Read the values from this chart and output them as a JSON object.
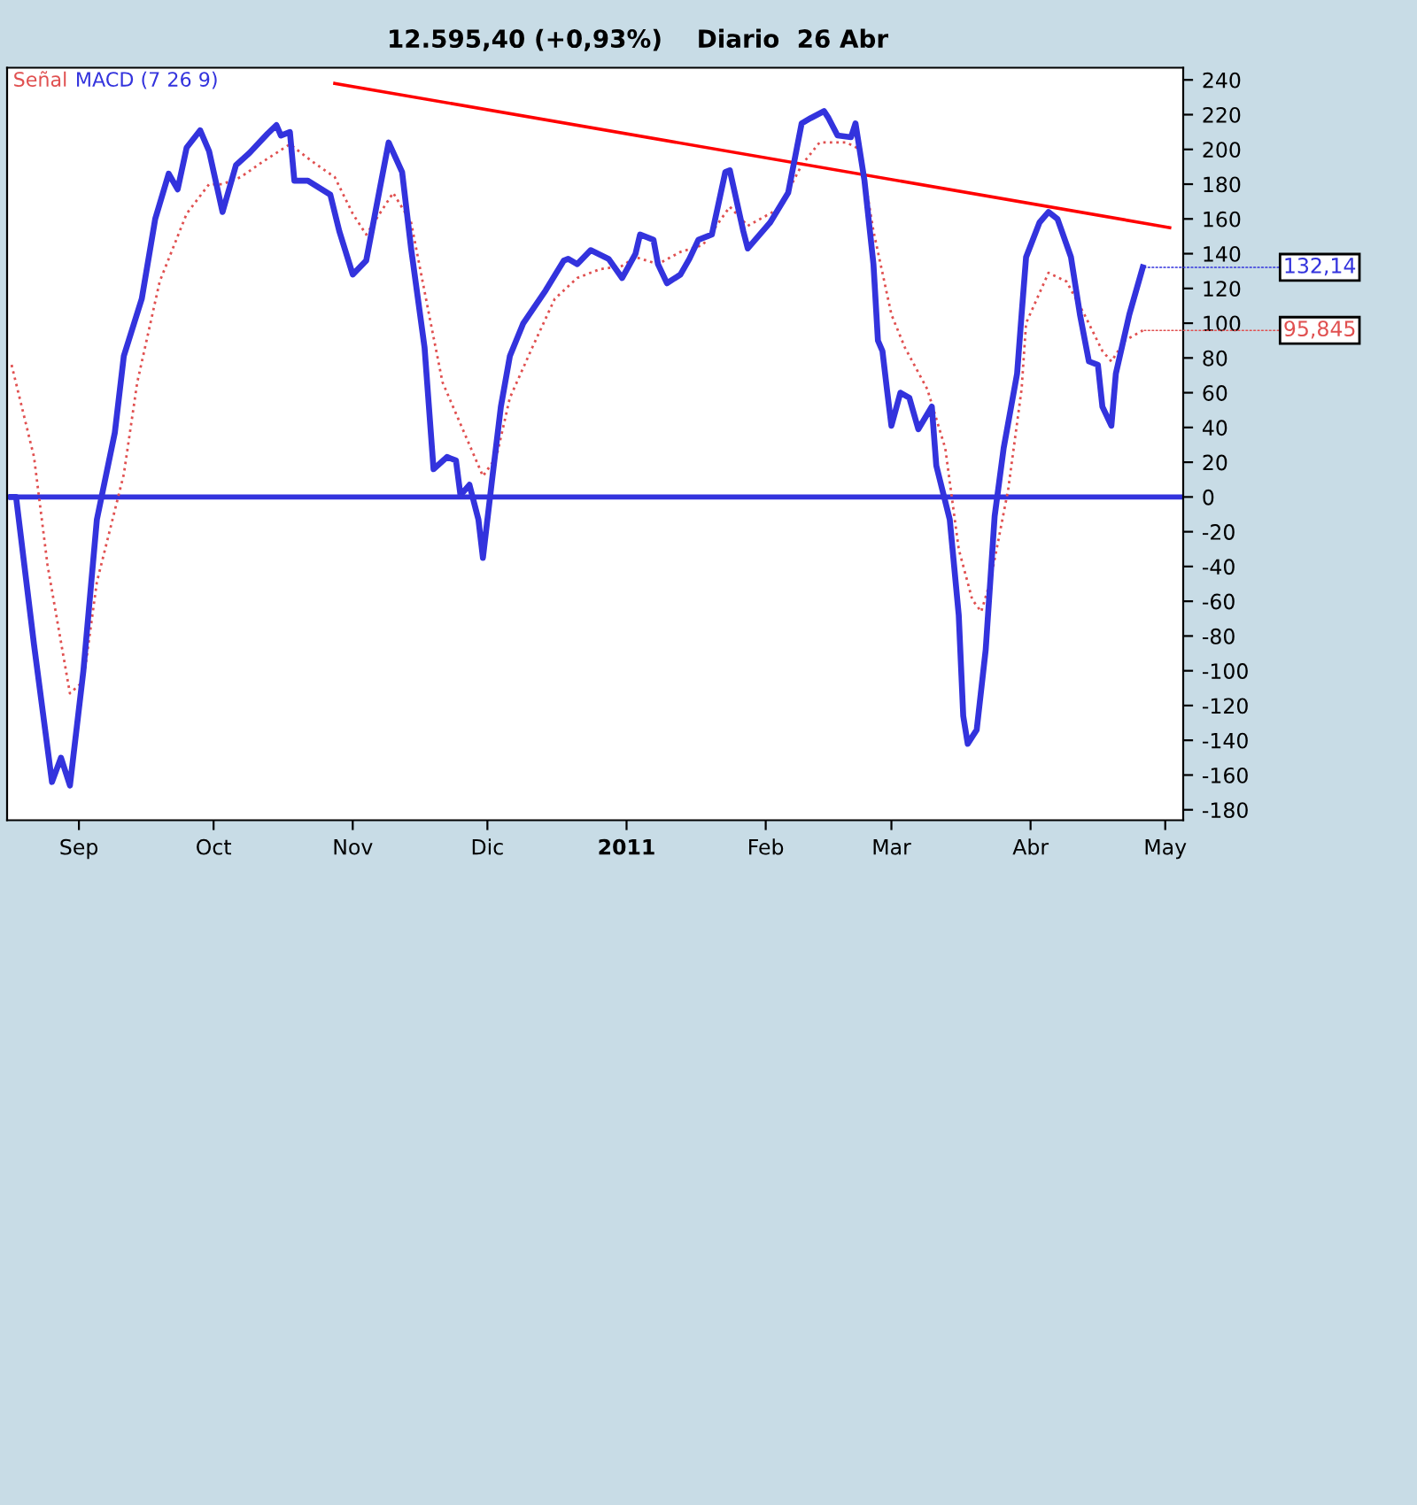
{
  "chart_data": {
    "type": "line",
    "title": "12.595,40 (+0,93%)    Diario  26 Abr",
    "xlim": [
      "2010-08-16",
      "2011-05-05"
    ],
    "xticks": [
      {
        "value": "2010-09-01",
        "label": "Sep"
      },
      {
        "value": "2010-10-01",
        "label": "Oct"
      },
      {
        "value": "2010-11-01",
        "label": "Nov"
      },
      {
        "value": "2010-12-01",
        "label": "Dic"
      },
      {
        "value": "2011-01-01",
        "label": "2011"
      },
      {
        "value": "2011-02-01",
        "label": "Feb"
      },
      {
        "value": "2011-03-01",
        "label": "Mar"
      },
      {
        "value": "2011-04-01",
        "label": "Abr"
      },
      {
        "value": "2011-05-01",
        "label": "May"
      }
    ],
    "ylim": [
      -186,
      247
    ],
    "yticks": [
      -180,
      -160,
      -140,
      -120,
      -100,
      -80,
      -60,
      -40,
      -20,
      0,
      20,
      40,
      60,
      80,
      100,
      120,
      140,
      160,
      180,
      200,
      220,
      240
    ],
    "grid": false,
    "legend": false,
    "series": [
      {
        "name": "Señal",
        "color": "#e05050",
        "line_style": "dotted",
        "x": [
          "2010-08-17",
          "2010-08-22",
          "2010-08-25",
          "2010-08-30",
          "2010-09-02",
          "2010-09-05",
          "2010-09-11",
          "2010-09-14",
          "2010-09-19",
          "2010-09-25",
          "2010-09-30",
          "2010-10-03",
          "2010-10-07",
          "2010-10-12",
          "2010-10-18",
          "2010-10-23",
          "2010-10-28",
          "2010-11-01",
          "2010-11-04",
          "2010-11-08",
          "2010-11-10",
          "2010-11-14",
          "2010-11-18",
          "2010-11-21",
          "2010-11-25",
          "2010-11-30",
          "2010-12-03",
          "2010-12-06",
          "2010-12-11",
          "2010-12-16",
          "2010-12-21",
          "2010-12-26",
          "2010-12-31",
          "2011-01-03",
          "2011-01-08",
          "2011-01-13",
          "2011-01-18",
          "2011-01-24",
          "2011-01-28",
          "2011-02-04",
          "2011-02-09",
          "2011-02-13",
          "2011-02-19",
          "2011-02-22",
          "2011-02-25",
          "2011-03-01",
          "2011-03-04",
          "2011-03-09",
          "2011-03-13",
          "2011-03-16",
          "2011-03-19",
          "2011-03-21",
          "2011-03-23",
          "2011-03-27",
          "2011-03-30",
          "2011-03-31",
          "2011-04-05",
          "2011-04-09",
          "2011-04-13",
          "2011-04-17",
          "2011-04-19",
          "2011-04-22",
          "2011-04-26"
        ],
        "values": [
          76,
          23,
          -39,
          -113,
          -106,
          -49,
          13,
          66,
          124,
          163,
          180,
          180,
          184,
          193,
          203,
          193,
          184,
          163,
          151,
          167,
          175,
          158,
          105,
          66,
          42,
          12,
          23,
          57,
          86,
          114,
          126,
          131,
          133,
          138,
          134,
          141,
          145,
          167,
          156,
          166,
          191,
          204,
          204,
          200,
          153,
          105,
          86,
          62,
          28,
          -30,
          -59,
          -66,
          -49,
          4,
          62,
          100,
          129,
          124,
          105,
          84,
          78,
          90,
          95.845
        ]
      },
      {
        "name": "MACD (7 26 9)",
        "color": "#3333dd",
        "line_style": "solid",
        "x": [
          "2010-08-17",
          "2010-08-18",
          "2010-08-22",
          "2010-08-26",
          "2010-08-28",
          "2010-08-30",
          "2010-09-02",
          "2010-09-05",
          "2010-09-09",
          "2010-09-11",
          "2010-09-15",
          "2010-09-18",
          "2010-09-21",
          "2010-09-23",
          "2010-09-25",
          "2010-09-28",
          "2010-09-30",
          "2010-10-03",
          "2010-10-06",
          "2010-10-09",
          "2010-10-13",
          "2010-10-15",
          "2010-10-16",
          "2010-10-18",
          "2010-10-19",
          "2010-10-22",
          "2010-10-27",
          "2010-10-29",
          "2010-11-01",
          "2010-11-04",
          "2010-11-07",
          "2010-11-09",
          "2010-11-12",
          "2010-11-14",
          "2010-11-17",
          "2010-11-19",
          "2010-11-22",
          "2010-11-24",
          "2010-11-25",
          "2010-11-27",
          "2010-11-29",
          "2010-11-30",
          "2010-12-02",
          "2010-12-04",
          "2010-12-06",
          "2010-12-09",
          "2010-12-14",
          "2010-12-18",
          "2010-12-19",
          "2010-12-21",
          "2010-12-24",
          "2010-12-28",
          "2010-12-31",
          "2011-01-03",
          "2011-01-04",
          "2011-01-07",
          "2011-01-08",
          "2011-01-10",
          "2011-01-13",
          "2011-01-15",
          "2011-01-17",
          "2011-01-20",
          "2011-01-23",
          "2011-01-24",
          "2011-01-27",
          "2011-01-28",
          "2011-02-02",
          "2011-02-06",
          "2011-02-09",
          "2011-02-11",
          "2011-02-14",
          "2011-02-15",
          "2011-02-17",
          "2011-02-20",
          "2011-02-21",
          "2011-02-23",
          "2011-02-25",
          "2011-02-26",
          "2011-02-27",
          "2011-02-28",
          "2011-03-01",
          "2011-03-03",
          "2011-03-05",
          "2011-03-07",
          "2011-03-10",
          "2011-03-11",
          "2011-03-14",
          "2011-03-16",
          "2011-03-17",
          "2011-03-18",
          "2011-03-20",
          "2011-03-22",
          "2011-03-24",
          "2011-03-26",
          "2011-03-29",
          "2011-03-30",
          "2011-03-31",
          "2011-04-03",
          "2011-04-05",
          "2011-04-07",
          "2011-04-10",
          "2011-04-12",
          "2011-04-14",
          "2011-04-16",
          "2011-04-17",
          "2011-04-19",
          "2011-04-20",
          "2011-04-23",
          "2011-04-26"
        ],
        "values": [
          0,
          0,
          -85,
          -164,
          -150,
          -166,
          -100,
          -13,
          37,
          81,
          114,
          160,
          186,
          177,
          201,
          211,
          199,
          164,
          191,
          198,
          209,
          214,
          208,
          210,
          182,
          182,
          174,
          153,
          128,
          136,
          177,
          204,
          187,
          143,
          86,
          16,
          23,
          21,
          1,
          7,
          -13,
          -35,
          9,
          52,
          81,
          100,
          119,
          136,
          137,
          134,
          142,
          137,
          126,
          140,
          151,
          148,
          134,
          123,
          128,
          137,
          148,
          151,
          187,
          188,
          153,
          143,
          158,
          175,
          215,
          218,
          222,
          218,
          208,
          207,
          215,
          182,
          134,
          90,
          84,
          62,
          41,
          60,
          57,
          39,
          52,
          18,
          -13,
          -68,
          -126,
          -142,
          -134,
          -88,
          -11,
          28,
          71,
          105,
          138,
          158,
          164,
          160,
          138,
          105,
          78,
          76,
          52,
          41,
          71,
          105,
          132.14
        ]
      },
      {
        "color": "#ff0000",
        "line_style": "solid",
        "x": [
          "2010-10-28",
          "2011-05-02"
        ],
        "values": [
          238,
          155
        ]
      }
    ],
    "ref_lines": [
      {
        "axis": "y",
        "value": 0,
        "color": "#3333dd",
        "line_style": "solid"
      }
    ],
    "annotations": [
      {
        "text": "132,14",
        "x": "2011-04-26",
        "y": 132.14
      },
      {
        "text": "95,845",
        "x": "2011-04-26",
        "y": 95.845
      }
    ]
  }
}
